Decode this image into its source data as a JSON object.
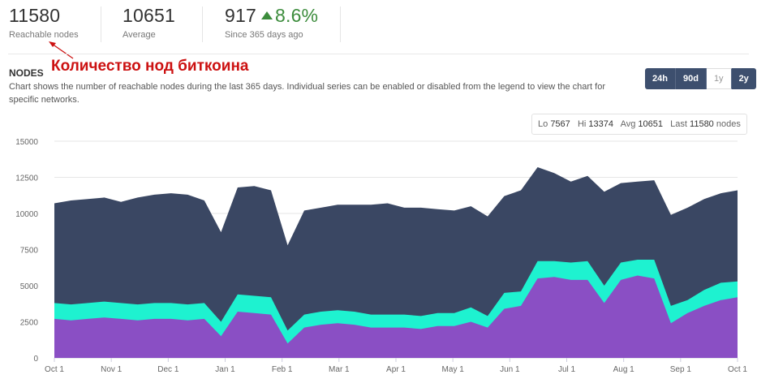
{
  "stats": {
    "reachable": {
      "value": "11580",
      "label": "Reachable nodes"
    },
    "average": {
      "value": "10651",
      "label": "Average"
    },
    "change": {
      "value": "917",
      "percent": "8.6%",
      "label": "Since 365 days ago"
    }
  },
  "annotation": "Количество нод биткоина",
  "section": {
    "title": "NODES",
    "description": "Chart shows the number of reachable nodes during the last 365 days. Individual series can be enabled or disabled from the legend to view the chart for specific networks."
  },
  "range_buttons": [
    {
      "label": "24h",
      "active": true
    },
    {
      "label": "90d",
      "active": true
    },
    {
      "label": "1y",
      "active": false
    },
    {
      "label": "2y",
      "active": true
    }
  ],
  "summary": {
    "lo_label": "Lo",
    "lo": "7567",
    "hi_label": "Hi",
    "hi": "13374",
    "avg_label": "Avg",
    "avg": "10651",
    "last_label": "Last",
    "last": "11580",
    "unit": "nodes"
  },
  "colors": {
    "total": "#3a4763",
    "middle": "#1ef2d0",
    "bottom": "#8a4fc4",
    "accent": "#3d4f6e",
    "up": "#3c8c3c"
  },
  "chart_data": {
    "type": "area",
    "stacked": false,
    "x_labels": [
      "Oct 1",
      "Nov 1",
      "Dec 1",
      "Jan 1",
      "Feb 1",
      "Mar 1",
      "Apr 1",
      "May 1",
      "Jun 1",
      "Jul 1",
      "Aug 1",
      "Sep 1",
      "Oct 1"
    ],
    "y_ticks": [
      0,
      2500,
      5000,
      7500,
      10000,
      12500,
      15000
    ],
    "ylim": [
      0,
      15000
    ],
    "grid": true,
    "series": [
      {
        "color_key": "total",
        "values": [
          10700,
          10900,
          11000,
          11100,
          10800,
          11100,
          11300,
          11400,
          11300,
          10900,
          8700,
          11800,
          11900,
          11600,
          7800,
          10200,
          10400,
          10600,
          10600,
          10600,
          10700,
          10400,
          10400,
          10300,
          10200,
          10500,
          9800,
          11200,
          11600,
          13200,
          12800,
          12200,
          12600,
          11500,
          12100,
          12200,
          12300,
          9900,
          10400,
          11000,
          11400,
          11600
        ]
      },
      {
        "color_key": "middle",
        "values": [
          3800,
          3700,
          3800,
          3900,
          3800,
          3700,
          3800,
          3800,
          3700,
          3800,
          2500,
          4400,
          4300,
          4200,
          1900,
          3000,
          3200,
          3300,
          3200,
          3000,
          3000,
          3000,
          2900,
          3100,
          3100,
          3500,
          2900,
          4500,
          4600,
          6700,
          6700,
          6600,
          6700,
          5000,
          6600,
          6800,
          6800,
          3600,
          4000,
          4700,
          5200,
          5300
        ]
      },
      {
        "color_key": "bottom",
        "values": [
          2700,
          2600,
          2700,
          2800,
          2700,
          2600,
          2700,
          2700,
          2600,
          2700,
          1500,
          3200,
          3100,
          3000,
          1000,
          2100,
          2300,
          2400,
          2300,
          2100,
          2100,
          2100,
          2000,
          2200,
          2200,
          2500,
          2100,
          3400,
          3600,
          5500,
          5600,
          5400,
          5400,
          3800,
          5400,
          5700,
          5500,
          2400,
          3100,
          3600,
          4000,
          4200
        ]
      }
    ]
  }
}
